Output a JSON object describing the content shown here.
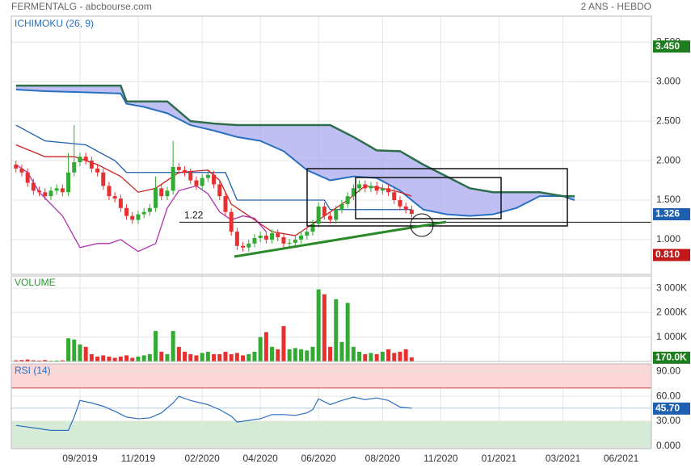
{
  "header": {
    "title": "FERMENTALG - abcbourse.com",
    "period": "2 ANS - HEBDO"
  },
  "chart_data": [
    {
      "type": "candlestick",
      "title": "ICHIMOKU (26, 9)",
      "xlim": [
        -0.8,
        109.2
      ],
      "ylim": [
        0.56,
        3.83
      ],
      "yticks": [
        {
          "value": 1.0,
          "label": "1.000"
        },
        {
          "value": 1.5,
          "label": "1.500"
        },
        {
          "value": 2.0,
          "label": "2.000"
        },
        {
          "value": 2.5,
          "label": "2.500"
        },
        {
          "value": 3.0,
          "label": "3.000"
        },
        {
          "value": 3.5,
          "label": "3.500"
        }
      ],
      "grid": true,
      "up_color": "#33aa33",
      "down_color": "#e83030",
      "x": [
        0,
        1,
        2,
        3,
        4,
        5,
        6,
        7,
        8,
        9,
        10,
        11,
        12,
        13,
        14,
        15,
        16,
        17,
        18,
        19,
        20,
        21,
        22,
        23,
        24,
        25,
        26,
        27,
        28,
        29,
        30,
        31,
        32,
        33,
        34,
        35,
        36,
        37,
        38,
        39,
        40,
        41,
        42,
        43,
        44,
        45,
        46,
        47,
        48,
        49,
        50,
        51,
        52,
        53,
        54,
        55,
        56,
        57,
        58,
        59,
        60,
        61,
        62,
        63,
        64,
        65,
        66,
        67,
        68
      ],
      "open": [
        1.95,
        1.9,
        1.85,
        1.72,
        1.62,
        1.6,
        1.55,
        1.62,
        1.65,
        1.6,
        1.85,
        1.98,
        2.05,
        2.0,
        1.9,
        1.85,
        1.68,
        1.55,
        1.52,
        1.4,
        1.3,
        1.25,
        1.32,
        1.35,
        1.4,
        1.65,
        1.55,
        1.62,
        1.92,
        1.88,
        1.85,
        1.75,
        1.68,
        1.78,
        1.82,
        1.7,
        1.55,
        1.35,
        1.1,
        0.92,
        0.9,
        0.95,
        1.02,
        1.05,
        1.0,
        1.08,
        1.03,
        0.95,
        0.96,
        1.0,
        1.05,
        1.1,
        1.2,
        1.42,
        1.3,
        1.25,
        1.38,
        1.45,
        1.55,
        1.65,
        1.7,
        1.65,
        1.68,
        1.62,
        1.65,
        1.6,
        1.5,
        1.42,
        1.38
      ],
      "high": [
        2.0,
        1.95,
        1.9,
        1.77,
        1.67,
        1.65,
        1.67,
        1.7,
        1.7,
        2.1,
        2.45,
        2.1,
        2.1,
        2.05,
        1.95,
        1.9,
        1.73,
        1.6,
        1.57,
        1.45,
        1.35,
        1.37,
        1.4,
        1.45,
        1.8,
        1.7,
        1.67,
        2.25,
        1.97,
        1.93,
        1.9,
        1.8,
        1.83,
        1.87,
        1.87,
        1.75,
        1.6,
        1.4,
        1.15,
        0.97,
        1.0,
        1.07,
        1.1,
        1.1,
        1.13,
        1.13,
        1.08,
        1.01,
        1.05,
        1.1,
        1.15,
        1.25,
        1.47,
        1.47,
        1.35,
        1.43,
        1.5,
        1.6,
        1.7,
        1.75,
        1.75,
        1.73,
        1.73,
        1.7,
        1.7,
        1.65,
        1.55,
        1.47,
        1.43
      ],
      "low": [
        1.85,
        1.8,
        1.67,
        1.57,
        1.55,
        1.5,
        1.5,
        1.57,
        1.55,
        1.55,
        1.8,
        1.93,
        1.95,
        1.85,
        1.8,
        1.63,
        1.5,
        1.47,
        1.35,
        1.25,
        1.2,
        1.2,
        1.27,
        1.3,
        1.35,
        1.5,
        1.5,
        1.57,
        1.83,
        1.8,
        1.7,
        1.63,
        1.63,
        1.73,
        1.65,
        1.5,
        1.3,
        1.05,
        0.87,
        0.85,
        0.85,
        0.9,
        0.97,
        0.95,
        0.95,
        0.98,
        0.9,
        0.9,
        0.91,
        0.95,
        1.0,
        1.05,
        1.15,
        1.25,
        1.2,
        1.2,
        1.33,
        1.4,
        1.5,
        1.6,
        1.6,
        1.6,
        1.57,
        1.57,
        1.55,
        1.45,
        1.37,
        1.33,
        1.28
      ],
      "close": [
        1.9,
        1.85,
        1.72,
        1.62,
        1.6,
        1.55,
        1.62,
        1.65,
        1.6,
        1.85,
        1.98,
        2.05,
        2.0,
        1.9,
        1.85,
        1.68,
        1.55,
        1.52,
        1.4,
        1.3,
        1.25,
        1.32,
        1.35,
        1.4,
        1.65,
        1.55,
        1.62,
        1.92,
        1.88,
        1.85,
        1.75,
        1.68,
        1.78,
        1.82,
        1.7,
        1.55,
        1.35,
        1.1,
        0.92,
        0.9,
        0.95,
        1.02,
        1.05,
        1.0,
        1.08,
        1.03,
        0.95,
        0.96,
        1.0,
        1.05,
        1.1,
        1.2,
        1.42,
        1.3,
        1.25,
        1.38,
        1.45,
        1.55,
        1.65,
        1.7,
        1.65,
        1.68,
        1.62,
        1.65,
        1.6,
        1.5,
        1.42,
        1.38,
        1.326
      ],
      "cloud": {
        "fill": "#aaaaf0",
        "color_a": "#2a6fc0",
        "color_b": "#2e6e4a",
        "x": [
          0,
          5,
          10,
          18,
          19,
          22,
          26,
          30,
          34,
          38,
          42,
          46,
          50,
          54,
          58,
          62,
          66,
          70,
          74,
          78,
          82,
          86,
          90,
          94,
          96
        ],
        "span_a": [
          2.9,
          2.88,
          2.87,
          2.85,
          2.72,
          2.68,
          2.6,
          2.45,
          2.38,
          2.3,
          2.25,
          2.12,
          1.88,
          1.75,
          1.8,
          1.78,
          1.62,
          1.38,
          1.32,
          1.3,
          1.32,
          1.4,
          1.55,
          1.55,
          1.5
        ],
        "span_b": [
          2.95,
          2.95,
          2.95,
          2.95,
          2.75,
          2.75,
          2.75,
          2.5,
          2.47,
          2.45,
          2.45,
          2.45,
          2.45,
          2.45,
          2.3,
          2.13,
          2.12,
          1.95,
          1.8,
          1.65,
          1.6,
          1.6,
          1.6,
          1.55,
          1.55
        ]
      },
      "lines": [
        {
          "color": "#1f5fb0",
          "x": [
            0,
            5,
            12,
            17,
            19,
            36,
            38,
            53,
            54,
            68
          ],
          "values": [
            2.45,
            2.25,
            2.2,
            2.0,
            1.85,
            1.85,
            1.5,
            1.5,
            1.38,
            1.38
          ]
        },
        {
          "color": "#cc2020",
          "x": [
            0,
            5,
            10,
            14,
            18,
            21,
            24,
            28,
            33,
            35,
            37,
            40,
            44,
            48,
            51,
            54,
            57,
            60,
            63,
            66,
            68
          ],
          "values": [
            2.2,
            2.05,
            2.05,
            1.95,
            1.8,
            1.6,
            1.65,
            1.85,
            1.88,
            1.75,
            1.45,
            1.3,
            1.1,
            1.05,
            1.2,
            1.35,
            1.5,
            1.68,
            1.65,
            1.6,
            1.55
          ]
        },
        {
          "color": "#b030b0",
          "x": [
            0,
            2,
            4,
            8,
            11,
            14,
            16,
            18,
            21,
            24,
            26,
            28,
            31,
            33,
            35,
            37,
            39,
            41,
            43
          ],
          "values": [
            1.95,
            1.85,
            1.6,
            1.3,
            0.9,
            0.95,
            0.95,
            1.0,
            0.85,
            0.95,
            1.4,
            1.62,
            1.68,
            1.58,
            1.35,
            1.25,
            1.3,
            1.27,
            1.1
          ]
        }
      ],
      "hline": 1.22,
      "markers": [
        {
          "value": 3.45,
          "label": "3.450",
          "color": "#1e7d1e"
        },
        {
          "value": 1.326,
          "label": "1.326",
          "color": "#1f5fb0"
        },
        {
          "value": 0.81,
          "label": "0.810",
          "color": "#c01818"
        }
      ]
    },
    {
      "type": "bar",
      "title": "VOLUME",
      "xlim": [
        -0.8,
        109.2
      ],
      "ylim": [
        0,
        3500000
      ],
      "yticks": [
        {
          "value": 1000000,
          "label": "1 000K"
        },
        {
          "value": 2000000,
          "label": "2 000K"
        },
        {
          "value": 3000000,
          "label": "3 000K"
        }
      ],
      "values": [
        50000,
        60000,
        80000,
        50000,
        40000,
        60000,
        30000,
        40000,
        50000,
        950000,
        900000,
        700000,
        600000,
        300000,
        200000,
        250000,
        200000,
        150000,
        200000,
        250000,
        150000,
        200000,
        250000,
        300000,
        1250000,
        400000,
        300000,
        1250000,
        600000,
        400000,
        300000,
        250000,
        350000,
        400000,
        300000,
        300000,
        400000,
        300000,
        350000,
        250000,
        300000,
        400000,
        1000000,
        1200000,
        600000,
        500000,
        1450000,
        500000,
        550000,
        500000,
        450000,
        600000,
        2950000,
        2750000,
        600000,
        2550000,
        800000,
        2400000,
        600000,
        400000,
        300000,
        350000,
        300000,
        400000,
        500000,
        350000,
        400000,
        500000,
        170000
      ],
      "markers": [
        {
          "value": 170000,
          "label": "170.0K",
          "color": "#1e7d1e"
        }
      ]
    },
    {
      "type": "line",
      "title": "RSI (14)",
      "color": "#2a6fc0",
      "xlim": [
        -0.8,
        109.2
      ],
      "ylim": [
        -3,
        99
      ],
      "yticks": [
        {
          "value": 0,
          "label": "0.000"
        },
        {
          "value": 30,
          "label": "30.00"
        },
        {
          "value": 60,
          "label": "60.00"
        },
        {
          "value": 90,
          "label": "90.00"
        }
      ],
      "overbought": 70,
      "oversold": 30,
      "xticks": [
        {
          "value": 11,
          "label": "09/2019"
        },
        {
          "value": 21,
          "label": "11/2019"
        },
        {
          "value": 32,
          "label": "02/2020"
        },
        {
          "value": 42,
          "label": "04/2020"
        },
        {
          "value": 52,
          "label": "06/2020"
        },
        {
          "value": 63,
          "label": "08/2020"
        },
        {
          "value": 73,
          "label": "11/2020"
        },
        {
          "value": 83,
          "label": "01/2021"
        },
        {
          "value": 94,
          "label": "03/2021"
        },
        {
          "value": 104,
          "label": "06/2021"
        }
      ],
      "x": [
        0,
        3,
        6,
        9,
        10,
        11,
        13,
        15,
        17,
        19,
        21,
        23,
        25,
        27,
        28,
        30,
        33,
        35,
        37,
        38,
        40,
        42,
        44,
        46,
        48,
        50,
        51,
        52,
        54,
        56,
        58,
        60,
        62,
        64,
        66,
        68
      ],
      "values": [
        25,
        22,
        19,
        19,
        35,
        55,
        52,
        48,
        42,
        35,
        33,
        34,
        40,
        52,
        60,
        55,
        50,
        44,
        36,
        29,
        31,
        33,
        38,
        38,
        37,
        40,
        44,
        57,
        50,
        55,
        59,
        56,
        58,
        55,
        47,
        45.7
      ],
      "markers": [
        {
          "value": 45.7,
          "label": "45.70",
          "color": "#1f5fb0"
        }
      ]
    }
  ]
}
